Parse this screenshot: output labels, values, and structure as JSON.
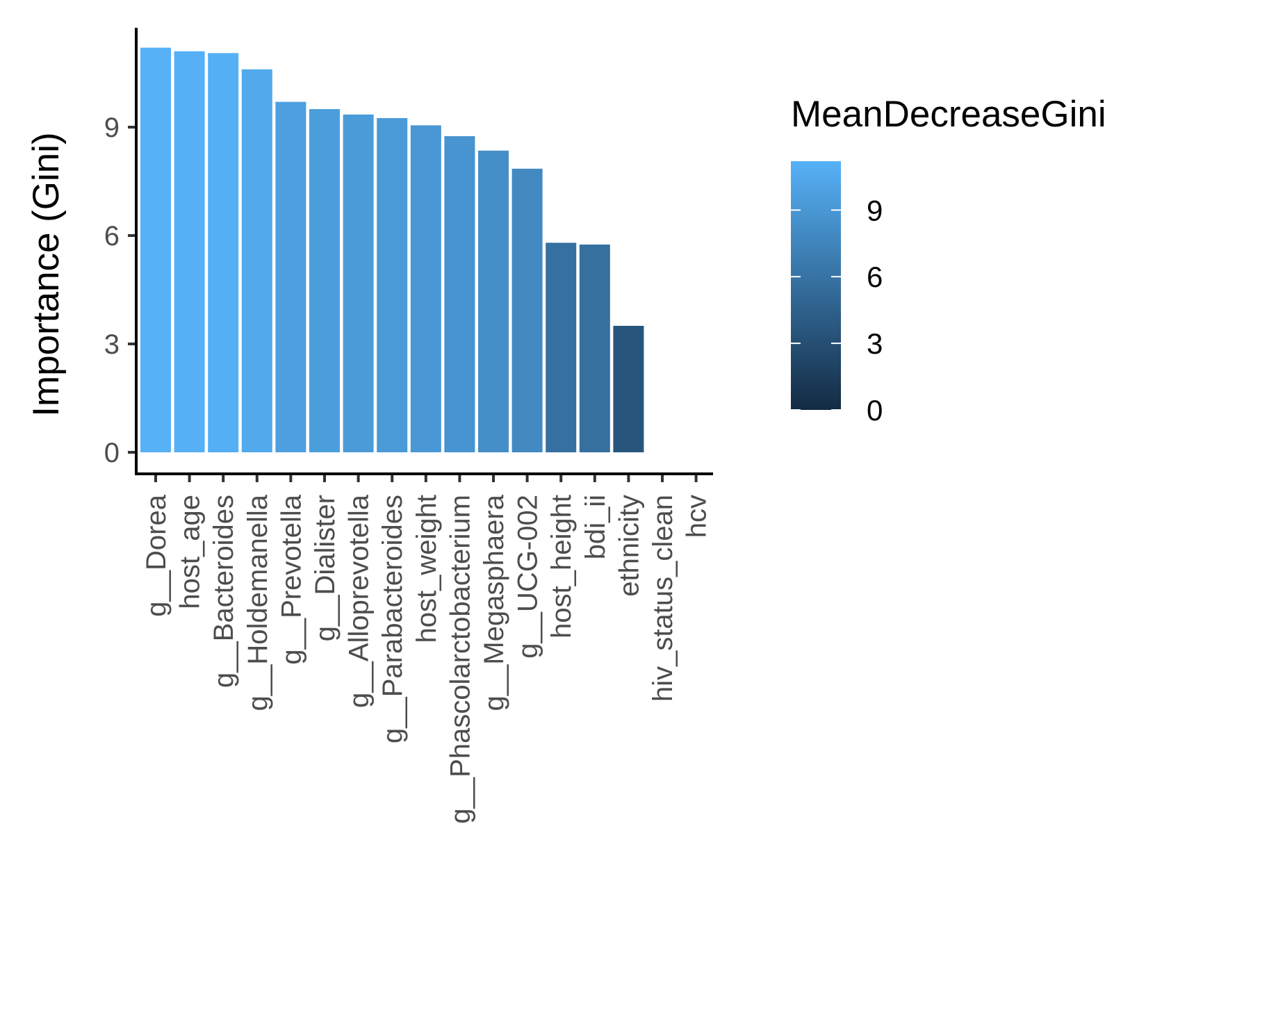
{
  "chart_data": {
    "type": "bar",
    "categories": [
      "g__Dorea",
      "host_age",
      "g__Bacteroides",
      "g__Holdemanella",
      "g__Prevotella",
      "g__Dialister",
      "g__Alloprevotella",
      "g__Parabacteroides",
      "host_weight",
      "g__Phascolarctobacterium",
      "g__Megasphaera",
      "g__UCG-002",
      "host_height",
      "bdi_ii",
      "ethnicity",
      "hiv_status_clean",
      "hcv"
    ],
    "values": [
      11.2,
      11.1,
      11.05,
      10.6,
      9.7,
      9.5,
      9.35,
      9.25,
      9.05,
      8.75,
      8.35,
      7.85,
      5.8,
      5.75,
      3.5,
      0,
      0
    ],
    "title": "",
    "xlabel": "",
    "ylabel": "Importance (Gini)",
    "ylim": [
      0,
      11.2
    ],
    "yticks": [
      0,
      3,
      6,
      9
    ],
    "grid": false,
    "legend": {
      "title": "MeanDecreaseGini",
      "type": "colorbar",
      "ticks": [
        0,
        3,
        6,
        9
      ],
      "range": [
        0,
        11.2
      ],
      "low_color": "#132B43",
      "high_color": "#56B1F7",
      "placement": "right"
    }
  }
}
